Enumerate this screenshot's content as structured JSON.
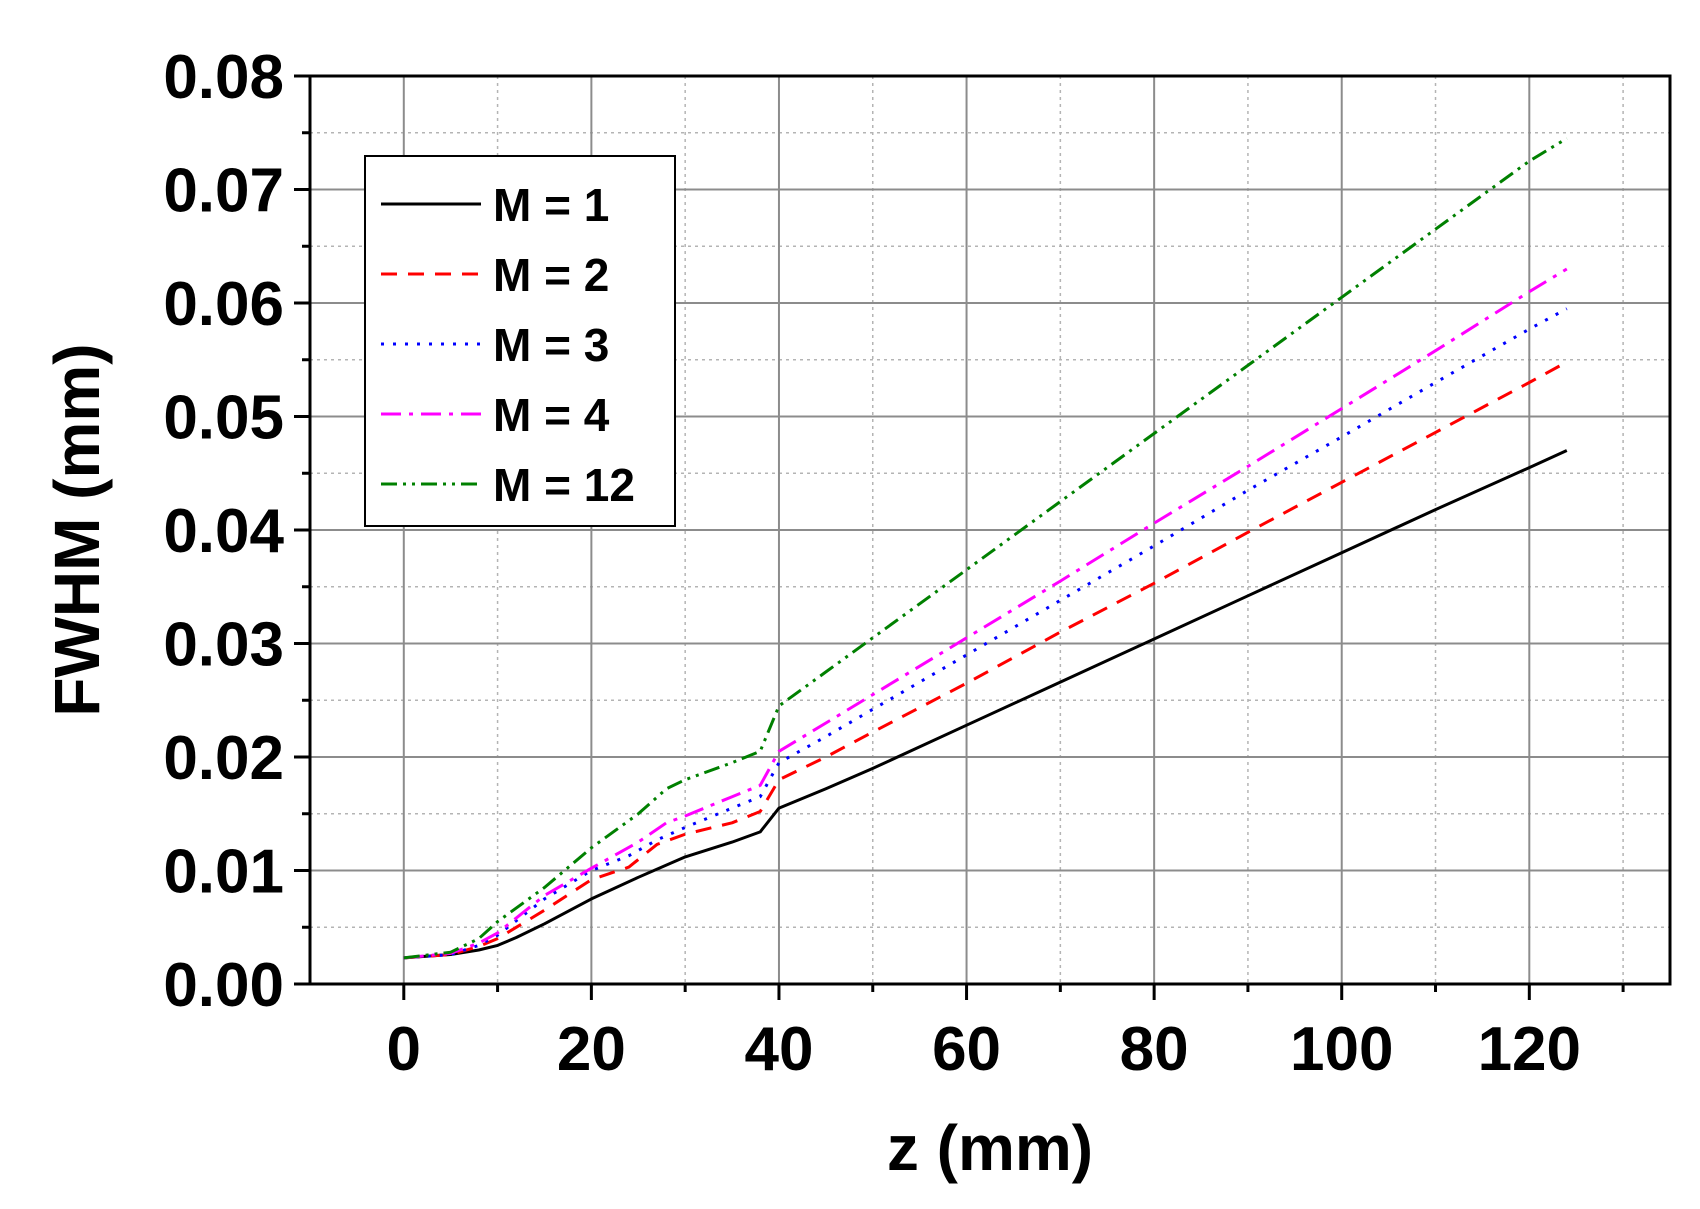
{
  "chart_data": {
    "type": "line",
    "xlabel": "z (mm)",
    "ylabel": "FWHM (mm)",
    "xlim": [
      -10,
      135
    ],
    "ylim": [
      0,
      0.08
    ],
    "x_ticks": [
      0,
      20,
      40,
      60,
      80,
      100,
      120
    ],
    "x_tick_labels": [
      "0",
      "20",
      "40",
      "60",
      "80",
      "100",
      "120"
    ],
    "y_ticks": [
      0,
      0.01,
      0.02,
      0.03,
      0.04,
      0.05,
      0.06,
      0.07,
      0.08
    ],
    "y_tick_labels": [
      "0.00",
      "0.01",
      "0.02",
      "0.03",
      "0.04",
      "0.05",
      "0.06",
      "0.07",
      "0.08"
    ],
    "grid": true,
    "legend_position": "top-left",
    "series": [
      {
        "name": "M = 1",
        "color": "#000000",
        "dash": "solid",
        "points": [
          [
            0,
            0.0023
          ],
          [
            5,
            0.0026
          ],
          [
            8,
            0.003
          ],
          [
            10,
            0.0034
          ],
          [
            12,
            0.0041
          ],
          [
            15,
            0.0053
          ],
          [
            20,
            0.0075
          ],
          [
            25,
            0.0094
          ],
          [
            30,
            0.0112
          ],
          [
            35,
            0.0125
          ],
          [
            38,
            0.0134
          ],
          [
            40,
            0.0155
          ],
          [
            45,
            0.0172
          ],
          [
            50,
            0.019
          ],
          [
            60,
            0.0228
          ],
          [
            70,
            0.0266
          ],
          [
            80,
            0.0304
          ],
          [
            90,
            0.0342
          ],
          [
            100,
            0.038
          ],
          [
            110,
            0.0418
          ],
          [
            120,
            0.0455
          ],
          [
            124,
            0.047
          ]
        ]
      },
      {
        "name": "M = 2",
        "color": "#ff0000",
        "dash": "dashed",
        "points": [
          [
            0,
            0.0023
          ],
          [
            5,
            0.0026
          ],
          [
            8,
            0.0033
          ],
          [
            10,
            0.004
          ],
          [
            15,
            0.0065
          ],
          [
            20,
            0.0092
          ],
          [
            24,
            0.0103
          ],
          [
            27,
            0.0123
          ],
          [
            30,
            0.0132
          ],
          [
            35,
            0.0142
          ],
          [
            38,
            0.0152
          ],
          [
            40,
            0.018
          ],
          [
            45,
            0.02
          ],
          [
            50,
            0.0222
          ],
          [
            60,
            0.0265
          ],
          [
            70,
            0.031
          ],
          [
            80,
            0.0353
          ],
          [
            90,
            0.0398
          ],
          [
            100,
            0.0442
          ],
          [
            110,
            0.0486
          ],
          [
            120,
            0.053
          ],
          [
            124,
            0.0548
          ]
        ]
      },
      {
        "name": "M = 3",
        "color": "#0000ff",
        "dash": "dotted",
        "points": [
          [
            0,
            0.0023
          ],
          [
            5,
            0.0026
          ],
          [
            8,
            0.0034
          ],
          [
            10,
            0.0043
          ],
          [
            15,
            0.0075
          ],
          [
            20,
            0.01
          ],
          [
            24,
            0.0113
          ],
          [
            27,
            0.0127
          ],
          [
            30,
            0.0138
          ],
          [
            35,
            0.0155
          ],
          [
            38,
            0.0165
          ],
          [
            40,
            0.0195
          ],
          [
            45,
            0.0218
          ],
          [
            50,
            0.0242
          ],
          [
            60,
            0.029
          ],
          [
            70,
            0.0338
          ],
          [
            80,
            0.0386
          ],
          [
            90,
            0.0435
          ],
          [
            100,
            0.0482
          ],
          [
            110,
            0.053
          ],
          [
            120,
            0.0577
          ],
          [
            124,
            0.0595
          ]
        ]
      },
      {
        "name": "M = 4",
        "color": "#ff00ff",
        "dash": "dashdot",
        "points": [
          [
            0,
            0.0023
          ],
          [
            5,
            0.0027
          ],
          [
            8,
            0.0036
          ],
          [
            10,
            0.0045
          ],
          [
            15,
            0.0078
          ],
          [
            20,
            0.0102
          ],
          [
            25,
            0.0125
          ],
          [
            28,
            0.0142
          ],
          [
            30,
            0.0148
          ],
          [
            35,
            0.0165
          ],
          [
            38,
            0.0175
          ],
          [
            40,
            0.0205
          ],
          [
            45,
            0.023
          ],
          [
            50,
            0.0255
          ],
          [
            60,
            0.0305
          ],
          [
            70,
            0.0355
          ],
          [
            80,
            0.0406
          ],
          [
            90,
            0.0456
          ],
          [
            100,
            0.0507
          ],
          [
            110,
            0.0558
          ],
          [
            120,
            0.061
          ],
          [
            124,
            0.063
          ]
        ]
      },
      {
        "name": "M = 12",
        "color": "#008000",
        "dash": "dashdotdot",
        "points": [
          [
            0,
            0.0023
          ],
          [
            5,
            0.0028
          ],
          [
            8,
            0.004
          ],
          [
            10,
            0.0055
          ],
          [
            15,
            0.0085
          ],
          [
            20,
            0.012
          ],
          [
            25,
            0.015
          ],
          [
            28,
            0.0172
          ],
          [
            30,
            0.018
          ],
          [
            35,
            0.0195
          ],
          [
            38,
            0.0205
          ],
          [
            40,
            0.0245
          ],
          [
            45,
            0.0275
          ],
          [
            50,
            0.0305
          ],
          [
            60,
            0.0365
          ],
          [
            70,
            0.0425
          ],
          [
            80,
            0.0485
          ],
          [
            90,
            0.0545
          ],
          [
            100,
            0.0605
          ],
          [
            110,
            0.0665
          ],
          [
            120,
            0.0725
          ],
          [
            124,
            0.0745
          ]
        ]
      }
    ]
  }
}
